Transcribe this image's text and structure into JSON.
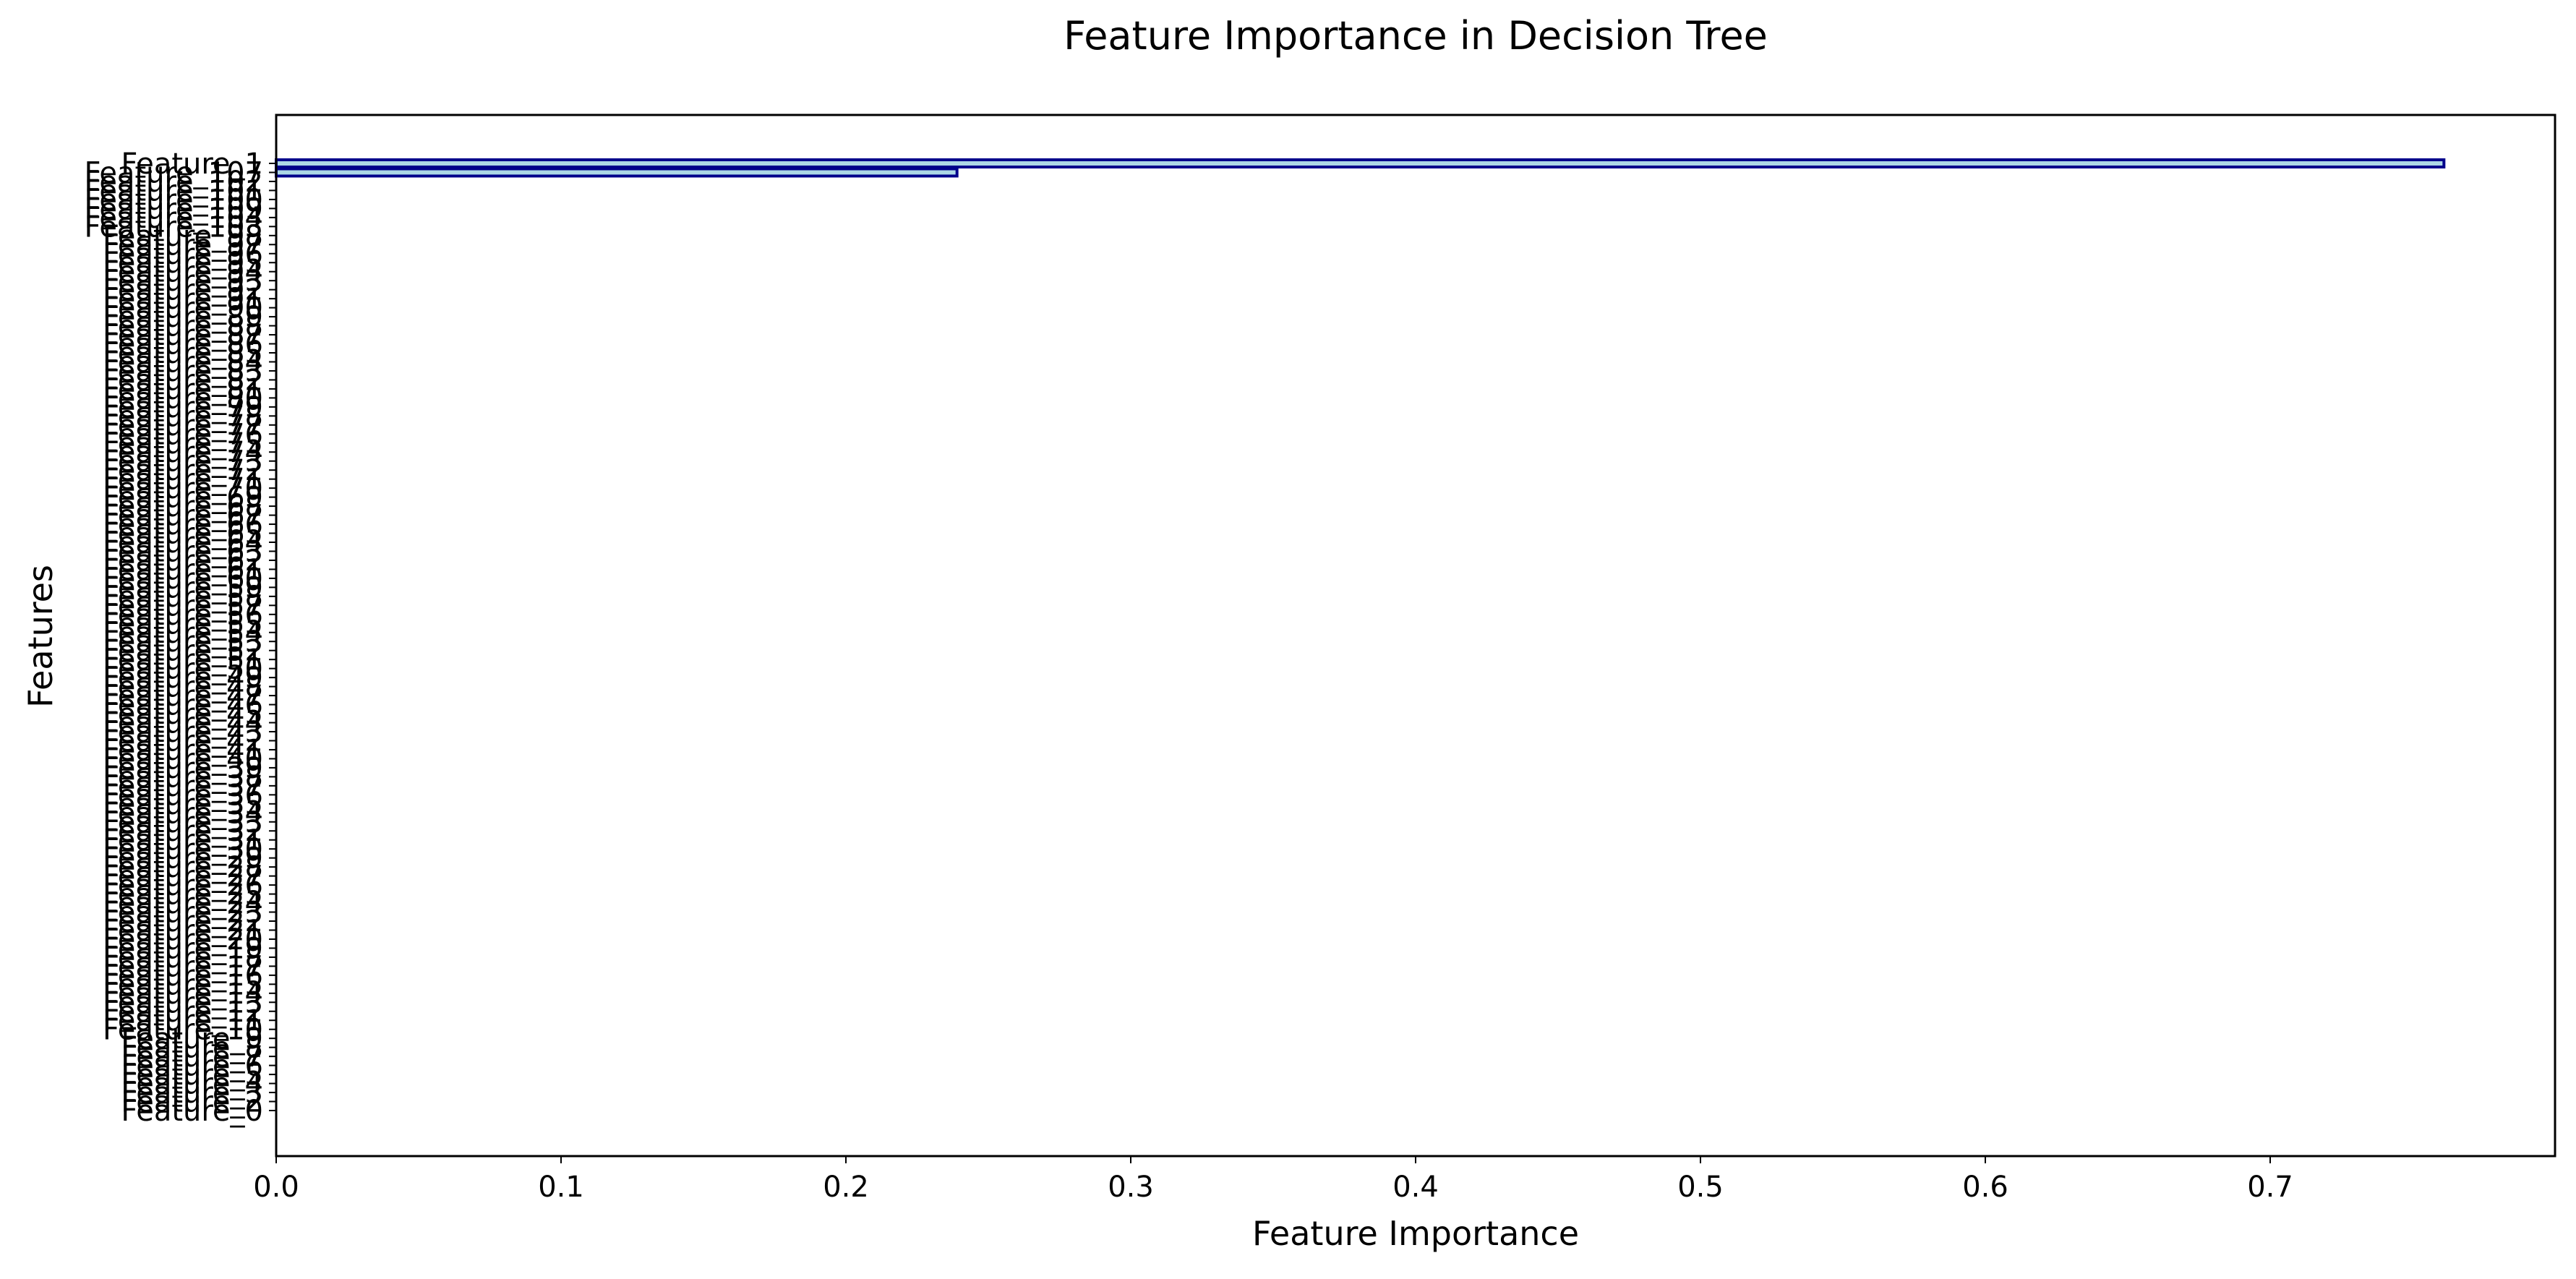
{
  "chart_data": {
    "type": "bar",
    "orientation": "horizontal",
    "title": "Feature Importance in Decision Tree",
    "xlabel": "Feature Importance",
    "ylabel": "Features",
    "xlim": [
      0,
      0.8
    ],
    "x_ticks": [
      0.0,
      0.1,
      0.2,
      0.3,
      0.4,
      0.5,
      0.6,
      0.7
    ],
    "x_tick_labels": [
      "0.0",
      "0.1",
      "0.2",
      "0.3",
      "0.4",
      "0.5",
      "0.6",
      "0.7"
    ],
    "grid": false,
    "legend": "none",
    "bar_fill_color": "#add8e6",
    "bar_edge_color": "#00008b",
    "categories": [
      "Feature_1",
      "Feature_107",
      "Feature_102",
      "Feature_101",
      "Feature_100",
      "Feature_109",
      "Feature_104",
      "Feature_103",
      "Feature_98",
      "Feature_97",
      "Feature_96",
      "Feature_95",
      "Feature_94",
      "Feature_93",
      "Feature_92",
      "Feature_91",
      "Feature_90",
      "Feature_89",
      "Feature_88",
      "Feature_87",
      "Feature_86",
      "Feature_85",
      "Feature_84",
      "Feature_83",
      "Feature_82",
      "Feature_81",
      "Feature_80",
      "Feature_79",
      "Feature_78",
      "Feature_77",
      "Feature_76",
      "Feature_75",
      "Feature_74",
      "Feature_73",
      "Feature_72",
      "Feature_71",
      "Feature_70",
      "Feature_69",
      "Feature_68",
      "Feature_67",
      "Feature_66",
      "Feature_65",
      "Feature_64",
      "Feature_63",
      "Feature_62",
      "Feature_61",
      "Feature_60",
      "Feature_59",
      "Feature_58",
      "Feature_57",
      "Feature_56",
      "Feature_55",
      "Feature_54",
      "Feature_53",
      "Feature_52",
      "Feature_51",
      "Feature_50",
      "Feature_49",
      "Feature_48",
      "Feature_47",
      "Feature_46",
      "Feature_45",
      "Feature_44",
      "Feature_43",
      "Feature_42",
      "Feature_41",
      "Feature_40",
      "Feature_39",
      "Feature_38",
      "Feature_37",
      "Feature_36",
      "Feature_35",
      "Feature_34",
      "Feature_33",
      "Feature_32",
      "Feature_31",
      "Feature_30",
      "Feature_29",
      "Feature_28",
      "Feature_27",
      "Feature_26",
      "Feature_25",
      "Feature_24",
      "Feature_23",
      "Feature_22",
      "Feature_21",
      "Feature_20",
      "Feature_19",
      "Feature_18",
      "Feature_17",
      "Feature_16",
      "Feature_15",
      "Feature_14",
      "Feature_13",
      "Feature_12",
      "Feature_11",
      "Feature_10",
      "Feature_9",
      "Feature_8",
      "Feature_7",
      "Feature_6",
      "Feature_5",
      "Feature_4",
      "Feature_3",
      "Feature_2",
      "Feature_0"
    ],
    "values": [
      0.761,
      0.239,
      0,
      0,
      0,
      0,
      0,
      0,
      0,
      0,
      0,
      0,
      0,
      0,
      0,
      0,
      0,
      0,
      0,
      0,
      0,
      0,
      0,
      0,
      0,
      0,
      0,
      0,
      0,
      0,
      0,
      0,
      0,
      0,
      0,
      0,
      0,
      0,
      0,
      0,
      0,
      0,
      0,
      0,
      0,
      0,
      0,
      0,
      0,
      0,
      0,
      0,
      0,
      0,
      0,
      0,
      0,
      0,
      0,
      0,
      0,
      0,
      0,
      0,
      0,
      0,
      0,
      0,
      0,
      0,
      0,
      0,
      0,
      0,
      0,
      0,
      0,
      0,
      0,
      0,
      0,
      0,
      0,
      0,
      0,
      0,
      0,
      0,
      0,
      0,
      0,
      0,
      0,
      0,
      0,
      0,
      0,
      0,
      0,
      0,
      0,
      0,
      0,
      0,
      0,
      0
    ]
  }
}
